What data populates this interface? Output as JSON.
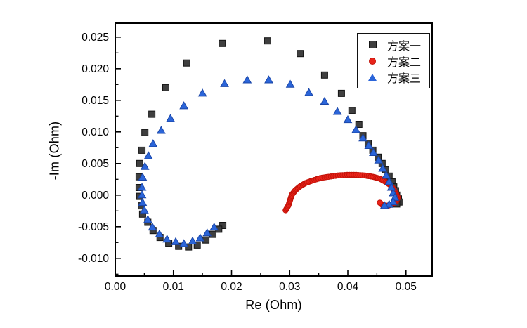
{
  "chart_data": {
    "type": "scatter",
    "xlabel": "Re (Ohm)",
    "ylabel": "-Im (Ohm)",
    "xlim": [
      0,
      0.0545
    ],
    "ylim": [
      -0.0128,
      0.0272
    ],
    "grid": false,
    "legend": {
      "position": "top-right",
      "border": true
    },
    "xticks": {
      "values": [
        0,
        0.01,
        0.02,
        0.03,
        0.04,
        0.05
      ],
      "labels": [
        "0.00",
        "0.01",
        "0.02",
        "0.03",
        "0.04",
        "0.05"
      ],
      "minor_values": [
        0.005,
        0.015,
        0.025,
        0.035,
        0.045
      ]
    },
    "yticks": {
      "values": [
        0.025,
        0.02,
        0.015,
        0.01,
        0.005,
        0.0,
        -0.005,
        -0.01
      ],
      "labels": [
        "0.025",
        "0.020",
        "0.015",
        "0.010",
        "0.005",
        "0.000",
        "-0.005",
        "-0.010"
      ],
      "minor_values": [
        0.0225,
        0.0175,
        0.0125,
        0.0075,
        0.0025,
        -0.0025,
        -0.0075,
        -0.0125
      ]
    },
    "series": [
      {
        "name": "方案一",
        "marker": "square",
        "color": "#3f3f3f",
        "edge": "#141414",
        "size": 9,
        "densify": 0,
        "points": [
          [
            0.0185,
            -0.0048
          ],
          [
            0.0178,
            -0.0054
          ],
          [
            0.0168,
            -0.0062
          ],
          [
            0.0156,
            -0.0071
          ],
          [
            0.0141,
            -0.0079
          ],
          [
            0.0126,
            -0.0082
          ],
          [
            0.0109,
            -0.0081
          ],
          [
            0.0092,
            -0.0076
          ],
          [
            0.0077,
            -0.0067
          ],
          [
            0.0065,
            -0.0056
          ],
          [
            0.0056,
            -0.0043
          ],
          [
            0.0047,
            -0.003
          ],
          [
            0.0045,
            -0.0017
          ],
          [
            0.0042,
            -0.0002
          ],
          [
            0.0041,
            0.0012
          ],
          [
            0.0041,
            0.0029
          ],
          [
            0.0042,
            0.005
          ],
          [
            0.0046,
            0.0071
          ],
          [
            0.0051,
            0.0099
          ],
          [
            0.0063,
            0.0128
          ],
          [
            0.0087,
            0.017
          ],
          [
            0.0123,
            0.0209
          ],
          [
            0.0184,
            0.024
          ],
          [
            0.0262,
            0.0244
          ],
          [
            0.0318,
            0.0224
          ],
          [
            0.036,
            0.019
          ],
          [
            0.0389,
            0.0161
          ],
          [
            0.0407,
            0.0134
          ],
          [
            0.0419,
            0.0112
          ],
          [
            0.0426,
            0.0094
          ],
          [
            0.0435,
            0.0082
          ],
          [
            0.0443,
            0.0071
          ],
          [
            0.0452,
            0.006
          ],
          [
            0.0459,
            0.005
          ],
          [
            0.0465,
            0.004
          ],
          [
            0.0471,
            0.003
          ],
          [
            0.0476,
            0.0021
          ],
          [
            0.0479,
            0.0013
          ],
          [
            0.0482,
            0.0007
          ],
          [
            0.0484,
            0.0
          ],
          [
            0.0487,
            -0.0006
          ],
          [
            0.0488,
            -0.0011
          ],
          [
            0.0484,
            -0.0014
          ]
        ]
      },
      {
        "name": "方案二",
        "marker": "circle",
        "color": "#e8231a",
        "edge": "#c21208",
        "size": 7.5,
        "densify": 3,
        "points": [
          [
            0.0293,
            -0.0024
          ],
          [
            0.0298,
            -0.0016
          ],
          [
            0.0301,
            -0.0007
          ],
          [
            0.0304,
            0.0001
          ],
          [
            0.031,
            0.0008
          ],
          [
            0.0318,
            0.0014
          ],
          [
            0.0327,
            0.0019
          ],
          [
            0.0339,
            0.0023
          ],
          [
            0.0353,
            0.0027
          ],
          [
            0.0367,
            0.0029
          ],
          [
            0.0383,
            0.0031
          ],
          [
            0.0399,
            0.0032
          ],
          [
            0.0414,
            0.0032
          ],
          [
            0.0429,
            0.0031
          ],
          [
            0.0443,
            0.0029
          ],
          [
            0.0455,
            0.0026
          ],
          [
            0.0465,
            0.0021
          ],
          [
            0.0473,
            0.0016
          ],
          [
            0.0479,
            0.0009
          ],
          [
            0.0483,
            0.0002
          ],
          [
            0.0486,
            -0.0004
          ],
          [
            0.0483,
            -0.001
          ],
          [
            0.0477,
            -0.0014
          ],
          [
            0.0469,
            -0.0017
          ],
          [
            0.046,
            -0.0016
          ],
          [
            0.0455,
            -0.0012
          ]
        ]
      },
      {
        "name": "方案三",
        "marker": "triangle",
        "color": "#2b65d9",
        "edge": "#1a46a8",
        "size": 11,
        "densify": 0,
        "points": [
          [
            0.017,
            -0.005
          ],
          [
            0.0158,
            -0.0059
          ],
          [
            0.0146,
            -0.0067
          ],
          [
            0.0133,
            -0.0072
          ],
          [
            0.0118,
            -0.0076
          ],
          [
            0.0104,
            -0.0073
          ],
          [
            0.0089,
            -0.0069
          ],
          [
            0.0076,
            -0.0061
          ],
          [
            0.0064,
            -0.005
          ],
          [
            0.0056,
            -0.0038
          ],
          [
            0.005,
            -0.0023
          ],
          [
            0.0047,
            -0.0011
          ],
          [
            0.0046,
            0.0001
          ],
          [
            0.0046,
            0.0013
          ],
          [
            0.0047,
            0.0029
          ],
          [
            0.0051,
            0.0046
          ],
          [
            0.0057,
            0.0063
          ],
          [
            0.0065,
            0.0082
          ],
          [
            0.0079,
            0.0103
          ],
          [
            0.0095,
            0.0122
          ],
          [
            0.0118,
            0.0142
          ],
          [
            0.015,
            0.0162
          ],
          [
            0.0188,
            0.0177
          ],
          [
            0.0227,
            0.0183
          ],
          [
            0.0264,
            0.0183
          ],
          [
            0.0301,
            0.0176
          ],
          [
            0.0333,
            0.0163
          ],
          [
            0.036,
            0.0149
          ],
          [
            0.0382,
            0.0133
          ],
          [
            0.04,
            0.012
          ],
          [
            0.0414,
            0.0104
          ],
          [
            0.0426,
            0.0091
          ],
          [
            0.0436,
            0.0079
          ],
          [
            0.0444,
            0.0068
          ],
          [
            0.0453,
            0.0056
          ],
          [
            0.046,
            0.0043
          ],
          [
            0.0466,
            0.0032
          ],
          [
            0.0471,
            0.0022
          ],
          [
            0.0475,
            0.0013
          ],
          [
            0.0478,
            0.0004
          ],
          [
            0.0481,
            -0.0003
          ],
          [
            0.0478,
            -0.001
          ],
          [
            0.0471,
            -0.0014
          ],
          [
            0.0463,
            -0.0016
          ]
        ]
      }
    ]
  }
}
